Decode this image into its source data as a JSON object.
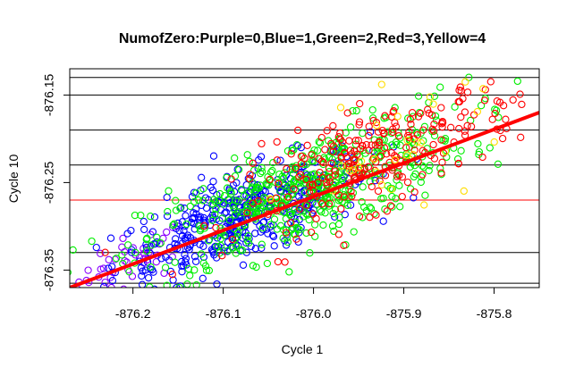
{
  "chart_data": {
    "type": "scatter",
    "title": "NumofZero:Purple=0,Blue=1,Green=2,Red=3,Yellow=4",
    "xlabel": "Cycle 1",
    "ylabel": "Cycle 10",
    "xlim": [
      -876.27,
      -875.75
    ],
    "ylim": [
      -876.37,
      -876.12
    ],
    "x_ticks": [
      -876.2,
      -876.1,
      -876.0,
      -875.9,
      -875.8
    ],
    "x_tick_labels": [
      "-876.2",
      "-876.1",
      "-876.0",
      "-875.9",
      "-875.8"
    ],
    "y_ticks": [
      -876.35,
      -876.25,
      -876.15
    ],
    "y_tick_labels": [
      "-876.35",
      "-876.25",
      "-876.15"
    ],
    "hlines_black": [
      -876.365,
      -876.33,
      -876.23,
      -876.19,
      -876.15,
      -876.13
    ],
    "hline_red": -876.27,
    "fit_line": {
      "x": [
        -876.27,
        -875.75
      ],
      "y": [
        -876.37,
        -876.17
      ],
      "color": "#ff0000"
    },
    "series_colors": {
      "purple": "#8a00ff",
      "blue": "#0000ff",
      "green": "#00ee00",
      "red": "#ff0000",
      "yellow": "#ffdd00"
    },
    "clusters": [
      {
        "color": "purple",
        "count": 45,
        "center": [
          -876.2,
          -876.34
        ],
        "spread": [
          0.03,
          0.015
        ],
        "along": 0.38
      },
      {
        "color": "blue",
        "count": 420,
        "center": [
          -876.08,
          -876.29
        ],
        "spread": [
          0.07,
          0.025
        ],
        "along": 0.38
      },
      {
        "color": "green",
        "count": 520,
        "center": [
          -876.01,
          -876.26
        ],
        "spread": [
          0.09,
          0.03
        ],
        "along": 0.38
      },
      {
        "color": "red",
        "count": 260,
        "center": [
          -875.93,
          -876.22
        ],
        "spread": [
          0.08,
          0.028
        ],
        "along": 0.38
      },
      {
        "color": "yellow",
        "count": 30,
        "center": [
          -875.9,
          -876.21
        ],
        "spread": [
          0.06,
          0.03
        ],
        "along": 0.38
      }
    ],
    "grid": false,
    "legend": "none"
  }
}
